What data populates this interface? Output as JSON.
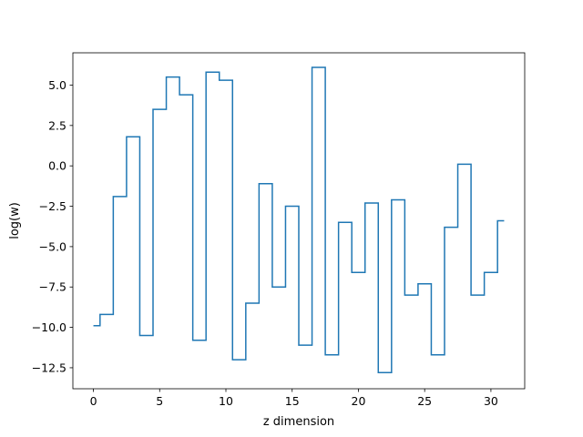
{
  "chart_data": {
    "type": "line",
    "drawstyle": "steps-post",
    "xlabel": "z dimension",
    "ylabel": "log(w)",
    "xlim": [
      -1.55,
      32.55
    ],
    "ylim": [
      -13.8,
      7.0
    ],
    "xticks": [
      0,
      5,
      10,
      15,
      20,
      25,
      30
    ],
    "yticks": [
      -12.5,
      -10.0,
      -7.5,
      -5.0,
      -2.5,
      0.0,
      2.5,
      5.0
    ],
    "ytick_labels": [
      "−12.5",
      "−10.0",
      "−7.5",
      "−5.0",
      "−2.5",
      "0.0",
      "2.5",
      "5.0"
    ],
    "grid": false,
    "series": [
      {
        "color": "#1f77b4",
        "x": [
          0,
          0.5,
          1.5,
          2.5,
          3.5,
          4.5,
          5.5,
          6.5,
          7.5,
          8.5,
          9.5,
          10.5,
          11.5,
          12.5,
          13.5,
          14.5,
          15.5,
          16.5,
          17.5,
          18.5,
          19.5,
          20.5,
          21.5,
          22.5,
          23.5,
          24.5,
          25.5,
          26.5,
          27.5,
          28.5,
          29.5,
          30.5,
          31.0
        ],
        "y": [
          -9.9,
          -9.2,
          -1.9,
          1.8,
          -10.5,
          3.5,
          5.5,
          4.4,
          -10.8,
          5.8,
          5.3,
          -12.0,
          -8.5,
          -1.1,
          -7.5,
          -2.5,
          -11.1,
          6.1,
          -11.7,
          -3.5,
          -6.6,
          -2.3,
          -12.8,
          -2.1,
          -8.0,
          -7.3,
          -11.7,
          -3.8,
          0.1,
          -8.0,
          -6.6,
          -3.4,
          -3.4
        ]
      }
    ]
  }
}
